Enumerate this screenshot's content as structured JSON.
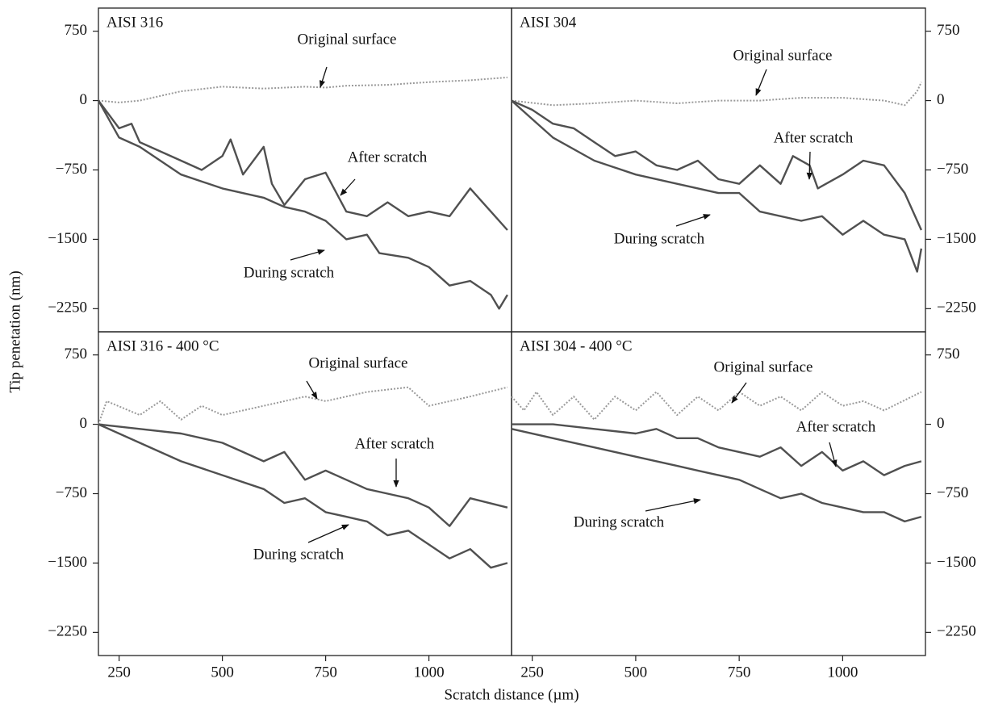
{
  "xlabel": "Scratch distance (µm)",
  "ylabel": "Tip penetation (nm)",
  "chart_data": [
    {
      "type": "line",
      "title": "AISI 316",
      "yaxis_side": "left",
      "xlim": [
        200,
        1200
      ],
      "ylim": [
        -2500,
        1000
      ],
      "yticks": [
        750,
        0,
        {
          "value": -750,
          "label": "−750"
        },
        {
          "value": -1500,
          "label": "−1500"
        },
        {
          "value": -2250,
          "label": "−2250"
        }
      ],
      "series": [
        {
          "name": "Original surface",
          "color": "#9a9a9a",
          "dash": true,
          "x": [
            200,
            250,
            300,
            400,
            500,
            600,
            700,
            750,
            800,
            900,
            1000,
            1100,
            1190
          ],
          "values": [
            0,
            -20,
            0,
            100,
            150,
            130,
            150,
            140,
            160,
            170,
            200,
            220,
            250
          ]
        },
        {
          "name": "After scratch",
          "color": "#505050",
          "dash": false,
          "x": [
            200,
            250,
            280,
            300,
            400,
            450,
            500,
            520,
            550,
            600,
            620,
            650,
            700,
            750,
            800,
            850,
            900,
            950,
            1000,
            1050,
            1100,
            1150,
            1190
          ],
          "values": [
            0,
            -300,
            -250,
            -450,
            -650,
            -750,
            -600,
            -420,
            -800,
            -500,
            -900,
            -1130,
            -850,
            -780,
            -1200,
            -1250,
            -1100,
            -1250,
            -1200,
            -1250,
            -950,
            -1200,
            -1400
          ]
        },
        {
          "name": "During scratch",
          "color": "#505050",
          "dash": false,
          "x": [
            200,
            250,
            300,
            400,
            500,
            600,
            650,
            700,
            750,
            800,
            850,
            880,
            950,
            1000,
            1050,
            1100,
            1150,
            1170,
            1190
          ],
          "values": [
            0,
            -400,
            -500,
            -800,
            -950,
            -1050,
            -1150,
            -1200,
            -1300,
            -1500,
            -1450,
            -1650,
            -1700,
            -1800,
            -2000,
            -1950,
            -2100,
            -2250,
            -2100
          ]
        }
      ]
    },
    {
      "type": "line",
      "title": "AISI 304",
      "yaxis_side": "right",
      "xlim": [
        200,
        1200
      ],
      "ylim": [
        -2500,
        1000
      ],
      "yticks": [
        750,
        0,
        {
          "value": -750,
          "label": "−750"
        },
        {
          "value": -1500,
          "label": "−1500"
        },
        {
          "value": -2250,
          "label": "−2250"
        }
      ],
      "series": [
        {
          "name": "Original surface",
          "color": "#9a9a9a",
          "dash": true,
          "x": [
            200,
            300,
            400,
            500,
            600,
            700,
            800,
            900,
            1000,
            1100,
            1150,
            1180,
            1190
          ],
          "values": [
            0,
            -50,
            -30,
            0,
            -30,
            0,
            0,
            30,
            30,
            0,
            -50,
            100,
            200
          ]
        },
        {
          "name": "After scratch",
          "color": "#505050",
          "dash": false,
          "x": [
            200,
            250,
            300,
            350,
            400,
            450,
            500,
            550,
            600,
            650,
            700,
            750,
            800,
            850,
            880,
            920,
            940,
            1000,
            1050,
            1100,
            1150,
            1190
          ],
          "values": [
            0,
            -100,
            -250,
            -300,
            -450,
            -600,
            -550,
            -700,
            -750,
            -650,
            -850,
            -900,
            -700,
            -900,
            -600,
            -700,
            -950,
            -800,
            -650,
            -700,
            -1000,
            -1400
          ]
        },
        {
          "name": "During scratch",
          "color": "#505050",
          "dash": false,
          "x": [
            200,
            250,
            300,
            400,
            500,
            600,
            700,
            750,
            800,
            900,
            950,
            1000,
            1050,
            1100,
            1150,
            1180,
            1190
          ],
          "values": [
            0,
            -200,
            -400,
            -650,
            -800,
            -900,
            -1000,
            -1000,
            -1200,
            -1300,
            -1250,
            -1450,
            -1300,
            -1450,
            -1500,
            -1850,
            -1600
          ]
        }
      ]
    },
    {
      "type": "line",
      "title": "AISI 316 - 400 °C",
      "yaxis_side": "left",
      "xlim": [
        200,
        1200
      ],
      "ylim": [
        -2500,
        1000
      ],
      "xticks": [
        250,
        500,
        750,
        1000
      ],
      "yticks": [
        750,
        0,
        {
          "value": -750,
          "label": "−750"
        },
        {
          "value": -1500,
          "label": "−1500"
        },
        {
          "value": -2250,
          "label": "−2250"
        }
      ],
      "series": [
        {
          "name": "Original surface",
          "color": "#9a9a9a",
          "dash": true,
          "x": [
            200,
            220,
            300,
            350,
            400,
            450,
            500,
            600,
            700,
            750,
            850,
            950,
            1000,
            1100,
            1190
          ],
          "values": [
            0,
            250,
            100,
            250,
            50,
            200,
            100,
            200,
            300,
            250,
            350,
            400,
            200,
            300,
            400
          ]
        },
        {
          "name": "After scratch",
          "color": "#505050",
          "dash": false,
          "x": [
            200,
            300,
            400,
            500,
            550,
            600,
            650,
            700,
            750,
            800,
            850,
            900,
            950,
            1000,
            1050,
            1100,
            1190
          ],
          "values": [
            0,
            -50,
            -100,
            -200,
            -300,
            -400,
            -300,
            -600,
            -500,
            -600,
            -700,
            -750,
            -800,
            -900,
            -1100,
            -800,
            -900
          ]
        },
        {
          "name": "During scratch",
          "color": "#505050",
          "dash": false,
          "x": [
            200,
            300,
            400,
            500,
            600,
            650,
            700,
            750,
            800,
            850,
            900,
            950,
            1000,
            1050,
            1100,
            1150,
            1190
          ],
          "values": [
            0,
            -200,
            -400,
            -550,
            -700,
            -850,
            -800,
            -950,
            -1000,
            -1050,
            -1200,
            -1150,
            -1300,
            -1450,
            -1350,
            -1550,
            -1500
          ]
        }
      ]
    },
    {
      "type": "line",
      "title": "AISI 304 - 400 °C",
      "yaxis_side": "right",
      "xlim": [
        200,
        1200
      ],
      "ylim": [
        -2500,
        1000
      ],
      "xticks": [
        250,
        500,
        750,
        1000
      ],
      "yticks": [
        750,
        0,
        {
          "value": -750,
          "label": "−750"
        },
        {
          "value": -1500,
          "label": "−1500"
        },
        {
          "value": -2250,
          "label": "−2250"
        }
      ],
      "series": [
        {
          "name": "Original surface",
          "color": "#9a9a9a",
          "dash": true,
          "x": [
            200,
            230,
            260,
            300,
            350,
            400,
            450,
            500,
            550,
            600,
            650,
            700,
            750,
            800,
            850,
            900,
            950,
            1000,
            1050,
            1100,
            1190
          ],
          "values": [
            300,
            150,
            350,
            100,
            300,
            50,
            300,
            150,
            350,
            100,
            300,
            150,
            350,
            200,
            300,
            150,
            350,
            200,
            250,
            150,
            350
          ]
        },
        {
          "name": "After scratch",
          "color": "#505050",
          "dash": false,
          "x": [
            200,
            300,
            400,
            500,
            550,
            600,
            650,
            700,
            750,
            800,
            850,
            900,
            950,
            1000,
            1050,
            1100,
            1150,
            1190
          ],
          "values": [
            0,
            0,
            -50,
            -100,
            -50,
            -150,
            -150,
            -250,
            -300,
            -350,
            -250,
            -450,
            -300,
            -500,
            -400,
            -550,
            -450,
            -400
          ]
        },
        {
          "name": "During scratch",
          "color": "#505050",
          "dash": false,
          "x": [
            200,
            300,
            400,
            500,
            600,
            650,
            700,
            750,
            800,
            850,
            900,
            950,
            1000,
            1050,
            1100,
            1150,
            1190
          ],
          "values": [
            -50,
            -150,
            -250,
            -350,
            -450,
            -500,
            -550,
            -600,
            -700,
            -800,
            -750,
            -850,
            -900,
            -950,
            -950,
            -1050,
            -1000
          ]
        }
      ]
    }
  ]
}
